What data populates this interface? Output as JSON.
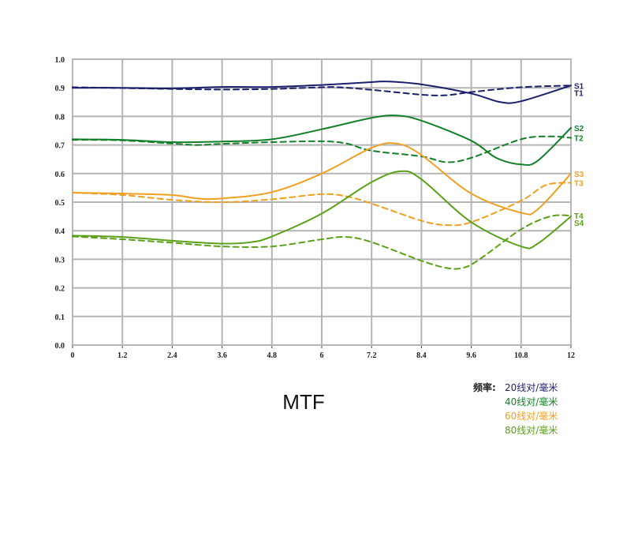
{
  "chart_data": {
    "type": "line",
    "title": "MTF",
    "xlim": [
      0,
      12
    ],
    "ylim": [
      0,
      1.0
    ],
    "x_ticks": [
      "0",
      "1.2",
      "2.4",
      "3.6",
      "4.8",
      "6",
      "7.2",
      "8.4",
      "9.6",
      "10.8",
      "12"
    ],
    "y_ticks": [
      "0.0",
      "0.1",
      "0.2",
      "0.3",
      "0.4",
      "0.5",
      "0.6",
      "0.7",
      "0.8",
      "0.9",
      "1.0"
    ],
    "grid": true,
    "series": [
      {
        "name": "S1",
        "style": "solid",
        "color": "#1a1f6e",
        "points": [
          [
            0,
            0.9
          ],
          [
            1.2,
            0.9
          ],
          [
            2.4,
            0.898
          ],
          [
            3.6,
            0.903
          ],
          [
            4.8,
            0.903
          ],
          [
            6,
            0.91
          ],
          [
            7.2,
            0.92
          ],
          [
            7.6,
            0.922
          ],
          [
            8.4,
            0.912
          ],
          [
            9.6,
            0.88
          ],
          [
            10.3,
            0.85
          ],
          [
            10.8,
            0.853
          ],
          [
            12,
            0.908
          ]
        ]
      },
      {
        "name": "T1",
        "style": "dashed",
        "color": "#1a1f6e",
        "points": [
          [
            0,
            0.902
          ],
          [
            1.2,
            0.899
          ],
          [
            2.4,
            0.896
          ],
          [
            3.6,
            0.894
          ],
          [
            4.8,
            0.896
          ],
          [
            6,
            0.902
          ],
          [
            6.4,
            0.902
          ],
          [
            7.2,
            0.893
          ],
          [
            8.4,
            0.876
          ],
          [
            9.0,
            0.874
          ],
          [
            9.6,
            0.885
          ],
          [
            10.8,
            0.902
          ],
          [
            12,
            0.908
          ]
        ]
      },
      {
        "name": "S2",
        "style": "solid",
        "color": "#128028",
        "points": [
          [
            0,
            0.72
          ],
          [
            1.2,
            0.718
          ],
          [
            2.4,
            0.71
          ],
          [
            3.6,
            0.712
          ],
          [
            4.8,
            0.72
          ],
          [
            6,
            0.755
          ],
          [
            7.2,
            0.795
          ],
          [
            7.8,
            0.803
          ],
          [
            8.4,
            0.785
          ],
          [
            9.6,
            0.715
          ],
          [
            10.2,
            0.655
          ],
          [
            10.8,
            0.632
          ],
          [
            11.2,
            0.645
          ],
          [
            12,
            0.76
          ]
        ]
      },
      {
        "name": "T2",
        "style": "dashed",
        "color": "#128028",
        "points": [
          [
            0,
            0.718
          ],
          [
            1.2,
            0.716
          ],
          [
            2.4,
            0.705
          ],
          [
            3.0,
            0.7
          ],
          [
            3.6,
            0.704
          ],
          [
            4.8,
            0.71
          ],
          [
            6,
            0.713
          ],
          [
            6.6,
            0.705
          ],
          [
            7.2,
            0.68
          ],
          [
            8.4,
            0.66
          ],
          [
            9.0,
            0.64
          ],
          [
            9.6,
            0.655
          ],
          [
            10.8,
            0.72
          ],
          [
            11.5,
            0.73
          ],
          [
            12,
            0.725
          ]
        ]
      },
      {
        "name": "S3",
        "style": "solid",
        "color": "#f0a020",
        "points": [
          [
            0,
            0.533
          ],
          [
            1.2,
            0.53
          ],
          [
            2.4,
            0.525
          ],
          [
            3.0,
            0.513
          ],
          [
            3.6,
            0.513
          ],
          [
            4.8,
            0.535
          ],
          [
            6,
            0.6
          ],
          [
            7.2,
            0.69
          ],
          [
            7.8,
            0.705
          ],
          [
            8.4,
            0.665
          ],
          [
            9.6,
            0.53
          ],
          [
            10.8,
            0.463
          ],
          [
            11.2,
            0.475
          ],
          [
            12,
            0.6
          ]
        ]
      },
      {
        "name": "T3",
        "style": "dashed",
        "color": "#f0a020",
        "points": [
          [
            0,
            0.533
          ],
          [
            1.2,
            0.525
          ],
          [
            2.4,
            0.508
          ],
          [
            3.6,
            0.5
          ],
          [
            4.8,
            0.51
          ],
          [
            6,
            0.528
          ],
          [
            6.6,
            0.52
          ],
          [
            7.2,
            0.495
          ],
          [
            8.4,
            0.435
          ],
          [
            9.0,
            0.42
          ],
          [
            9.6,
            0.43
          ],
          [
            10.8,
            0.505
          ],
          [
            11.4,
            0.56
          ],
          [
            12,
            0.568
          ]
        ]
      },
      {
        "name": "S4",
        "style": "solid",
        "color": "#5aa018",
        "points": [
          [
            0,
            0.383
          ],
          [
            1.2,
            0.378
          ],
          [
            2.4,
            0.365
          ],
          [
            3.6,
            0.355
          ],
          [
            4.3,
            0.36
          ],
          [
            4.8,
            0.38
          ],
          [
            6,
            0.46
          ],
          [
            7.2,
            0.57
          ],
          [
            7.9,
            0.608
          ],
          [
            8.4,
            0.58
          ],
          [
            9.6,
            0.43
          ],
          [
            10.8,
            0.345
          ],
          [
            11.2,
            0.355
          ],
          [
            12,
            0.45
          ]
        ]
      },
      {
        "name": "T4",
        "style": "dashed",
        "color": "#5aa018",
        "points": [
          [
            0,
            0.38
          ],
          [
            1.2,
            0.37
          ],
          [
            2.4,
            0.358
          ],
          [
            3.6,
            0.345
          ],
          [
            4.8,
            0.345
          ],
          [
            6,
            0.37
          ],
          [
            6.6,
            0.378
          ],
          [
            7.2,
            0.36
          ],
          [
            8.4,
            0.295
          ],
          [
            9.0,
            0.27
          ],
          [
            9.4,
            0.27
          ],
          [
            9.8,
            0.3
          ],
          [
            10.8,
            0.405
          ],
          [
            11.5,
            0.45
          ],
          [
            12,
            0.453
          ]
        ]
      }
    ],
    "legend": {
      "heading": "频率:",
      "entries": [
        {
          "label": "20线对/毫米",
          "color": "#1a1f6e"
        },
        {
          "label": "40线对/毫米",
          "color": "#128028"
        },
        {
          "label": "60线对/毫米",
          "color": "#f0a020"
        },
        {
          "label": "80线对/毫米",
          "color": "#5aa018"
        }
      ]
    }
  }
}
